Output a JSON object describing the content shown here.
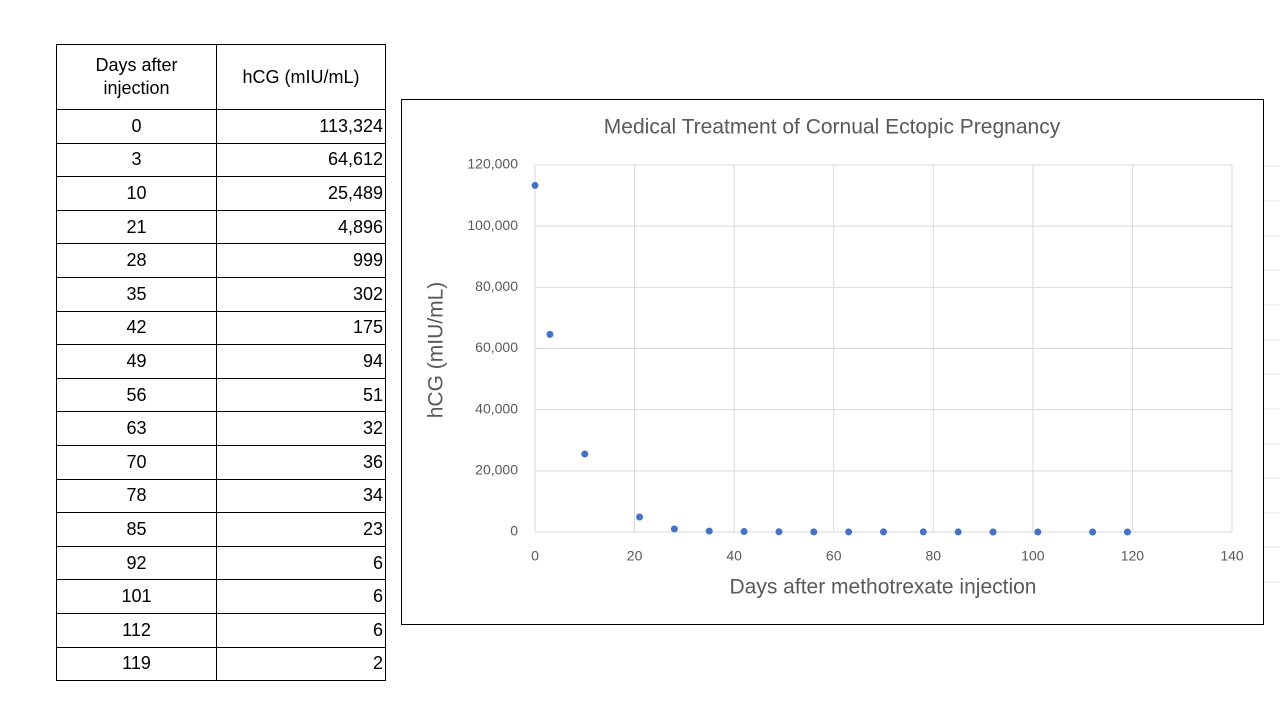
{
  "table": {
    "header": [
      "Days after injection",
      "hCG (mIU/mL)"
    ],
    "rows": [
      [
        "0",
        "113,324"
      ],
      [
        "3",
        "64,612"
      ],
      [
        "10",
        "25,489"
      ],
      [
        "21",
        "4,896"
      ],
      [
        "28",
        "999"
      ],
      [
        "35",
        "302"
      ],
      [
        "42",
        "175"
      ],
      [
        "49",
        "94"
      ],
      [
        "56",
        "51"
      ],
      [
        "63",
        "32"
      ],
      [
        "70",
        "36"
      ],
      [
        "78",
        "34"
      ],
      [
        "85",
        "23"
      ],
      [
        "92",
        "6"
      ],
      [
        "101",
        "6"
      ],
      [
        "112",
        "6"
      ],
      [
        "119",
        "2"
      ]
    ]
  },
  "chart_data": {
    "type": "scatter",
    "title": "Medical Treatment of Cornual Ectopic Pregnancy",
    "x_label": "Days after methotrexate injection",
    "y_label": "hCG (mIU/mL)",
    "x": [
      0,
      3,
      10,
      21,
      28,
      35,
      42,
      49,
      56,
      63,
      70,
      78,
      85,
      92,
      101,
      112,
      119
    ],
    "values": [
      113324,
      64612,
      25489,
      4896,
      999,
      302,
      175,
      94,
      51,
      32,
      36,
      34,
      23,
      6,
      6,
      6,
      2
    ],
    "color": "#4472c4",
    "xlim": [
      0,
      140
    ],
    "xticks": [
      0,
      20,
      40,
      60,
      80,
      100,
      120,
      140
    ],
    "ylim": [
      0,
      120000
    ],
    "yticks": [
      0,
      {
        "value": 20000,
        "label": "20,000"
      },
      {
        "value": 40000,
        "label": "40,000"
      },
      {
        "value": 60000,
        "label": "60,000"
      },
      {
        "value": 80000,
        "label": "80,000"
      },
      {
        "value": 100000,
        "label": "100,000"
      },
      {
        "value": 120000,
        "label": "120,000"
      }
    ],
    "grid": true
  }
}
